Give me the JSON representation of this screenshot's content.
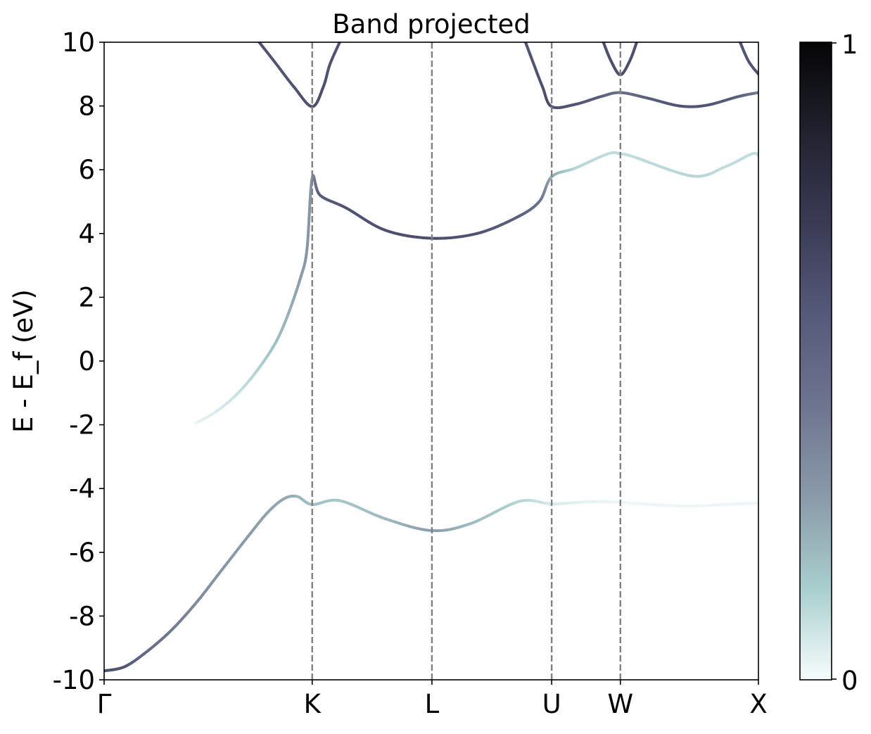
{
  "chart_data": {
    "type": "line",
    "title": "Band projected",
    "xlabel": "",
    "ylabel": "E - E_f (eV)",
    "ylim": [
      -10,
      10
    ],
    "xlim": [
      0,
      1
    ],
    "yticks": [
      -10,
      -8,
      -6,
      -4,
      -2,
      0,
      2,
      4,
      6,
      8,
      10
    ],
    "ytick_labels": [
      "-10",
      "-8",
      "-6",
      "-4",
      "-2",
      "0",
      "2",
      "4",
      "6",
      "8",
      "10"
    ],
    "kpoints": [
      {
        "label": "Γ",
        "x": 0.0
      },
      {
        "label": "K",
        "x": 0.318
      },
      {
        "label": "L",
        "x": 0.501
      },
      {
        "label": "U",
        "x": 0.684
      },
      {
        "label": "W",
        "x": 0.789
      },
      {
        "label": "X",
        "x": 1.0
      }
    ],
    "grid": false,
    "vlines_style": "dashed",
    "colorbar": {
      "min": 0,
      "max": 1,
      "tick_labels": [
        "0",
        "1"
      ],
      "colors": [
        "#f7fcfc",
        "#a9cece",
        "#8a9aa8",
        "#6e7590",
        "#565a7a",
        "#3b3b55",
        "#222230",
        "#050505"
      ]
    },
    "bands": [
      {
        "points": [
          [
            0.0,
            -9.72
          ],
          [
            0.03,
            -9.6
          ],
          [
            0.06,
            -9.2
          ],
          [
            0.1,
            -8.5
          ],
          [
            0.14,
            -7.6
          ],
          [
            0.18,
            -6.55
          ],
          [
            0.22,
            -5.5
          ],
          [
            0.25,
            -4.75
          ],
          [
            0.275,
            -4.32
          ],
          [
            0.295,
            -4.25
          ],
          [
            0.318,
            -4.5
          ],
          [
            0.36,
            -4.38
          ],
          [
            0.43,
            -4.95
          ],
          [
            0.501,
            -5.32
          ],
          [
            0.56,
            -5.1
          ],
          [
            0.635,
            -4.4
          ],
          [
            0.684,
            -4.48
          ],
          [
            0.74,
            -4.42
          ],
          [
            0.789,
            -4.43
          ],
          [
            0.85,
            -4.52
          ],
          [
            0.9,
            -4.55
          ],
          [
            0.95,
            -4.5
          ],
          [
            1.0,
            -4.45
          ]
        ],
        "weights": [
          0.62,
          0.6,
          0.5,
          0.42,
          0.35,
          0.3,
          0.28,
          0.26,
          0.25,
          0.22,
          0.18,
          0.16,
          0.2,
          0.28,
          0.2,
          0.12,
          0.06,
          0.03,
          0.02,
          0.02,
          0.02,
          0.02,
          0.02
        ]
      },
      {
        "points": [
          [
            0.14,
            -1.95
          ],
          [
            0.17,
            -1.6
          ],
          [
            0.2,
            -1.1
          ],
          [
            0.23,
            -0.4
          ],
          [
            0.26,
            0.5
          ],
          [
            0.28,
            1.4
          ],
          [
            0.3,
            2.6
          ],
          [
            0.31,
            3.5
          ],
          [
            0.318,
            5.75
          ],
          [
            0.33,
            5.2
          ],
          [
            0.37,
            4.8
          ],
          [
            0.43,
            4.1
          ],
          [
            0.501,
            3.85
          ],
          [
            0.57,
            4.0
          ],
          [
            0.63,
            4.5
          ],
          [
            0.665,
            5.0
          ],
          [
            0.684,
            5.78
          ],
          [
            0.72,
            6.05
          ],
          [
            0.77,
            6.5
          ],
          [
            0.789,
            6.5
          ],
          [
            0.81,
            6.4
          ],
          [
            0.9,
            5.8
          ],
          [
            0.95,
            6.1
          ],
          [
            0.99,
            6.5
          ],
          [
            1.0,
            6.45
          ]
        ],
        "weights": [
          0.02,
          0.05,
          0.08,
          0.12,
          0.18,
          0.22,
          0.28,
          0.3,
          0.3,
          0.55,
          0.6,
          0.62,
          0.62,
          0.6,
          0.55,
          0.45,
          0.25,
          0.12,
          0.1,
          0.1,
          0.1,
          0.12,
          0.1,
          0.1,
          0.1
        ]
      },
      {
        "points": [
          [
            0.237,
            10.0
          ],
          [
            0.26,
            9.4
          ],
          [
            0.29,
            8.6
          ],
          [
            0.318,
            7.98
          ],
          [
            0.335,
            8.6
          ],
          [
            0.345,
            9.3
          ],
          [
            0.36,
            10.0
          ]
        ],
        "weights": [
          0.6,
          0.6,
          0.6,
          0.62,
          0.62,
          0.6,
          0.6
        ]
      },
      {
        "points": [
          [
            0.644,
            10.0
          ],
          [
            0.655,
            9.4
          ],
          [
            0.67,
            8.6
          ],
          [
            0.684,
            7.98
          ],
          [
            0.72,
            8.05
          ],
          [
            0.76,
            8.3
          ],
          [
            0.789,
            8.42
          ],
          [
            0.83,
            8.25
          ],
          [
            0.88,
            8.0
          ],
          [
            0.92,
            8.02
          ],
          [
            0.97,
            8.3
          ],
          [
            1.0,
            8.42
          ]
        ],
        "weights": [
          0.6,
          0.6,
          0.62,
          0.62,
          0.6,
          0.55,
          0.45,
          0.55,
          0.6,
          0.6,
          0.55,
          0.4
        ]
      },
      {
        "points": [
          [
            0.763,
            10.0
          ],
          [
            0.775,
            9.4
          ],
          [
            0.789,
            8.98
          ],
          [
            0.803,
            9.4
          ],
          [
            0.814,
            10.0
          ]
        ],
        "weights": [
          0.62,
          0.62,
          0.62,
          0.62,
          0.62
        ]
      },
      {
        "points": [
          [
            0.972,
            10.0
          ],
          [
            0.985,
            9.4
          ],
          [
            1.0,
            9.0
          ]
        ],
        "weights": [
          0.6,
          0.6,
          0.6
        ]
      }
    ]
  }
}
